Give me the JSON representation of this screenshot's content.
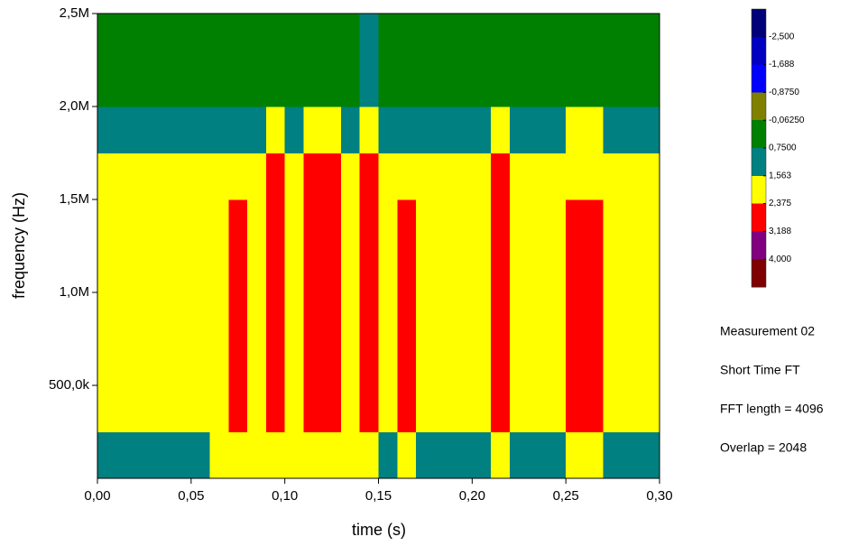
{
  "chart_data": {
    "type": "heatmap",
    "xlabel": "time (s)",
    "ylabel": "frequency (Hz)",
    "xlim": [
      0,
      0.3
    ],
    "ylim": [
      0,
      2500000
    ],
    "xticks": [
      {
        "value": 0,
        "label": "0,00"
      },
      {
        "value": 0.05,
        "label": "0,05"
      },
      {
        "value": 0.1,
        "label": "0,10"
      },
      {
        "value": 0.15,
        "label": "0,15"
      },
      {
        "value": 0.2,
        "label": "0,20"
      },
      {
        "value": 0.25,
        "label": "0,25"
      },
      {
        "value": 0.3,
        "label": "0,30"
      }
    ],
    "yticks": [
      {
        "value": 500000,
        "label": "500,0k"
      },
      {
        "value": 1000000,
        "label": "1,0M"
      },
      {
        "value": 1500000,
        "label": "1,5M"
      },
      {
        "value": 2000000,
        "label": "2,0M"
      },
      {
        "value": 2500000,
        "label": "2,5M"
      }
    ],
    "xbins": [
      0,
      0.01,
      0.02,
      0.03,
      0.04,
      0.05,
      0.06,
      0.07,
      0.08,
      0.09,
      0.1,
      0.11,
      0.12,
      0.13,
      0.14,
      0.15,
      0.16,
      0.17,
      0.18,
      0.19,
      0.2,
      0.21,
      0.22,
      0.23,
      0.24,
      0.25,
      0.26,
      0.27,
      0.28,
      0.29,
      0.3
    ],
    "ybins": [
      0,
      250000,
      500000,
      750000,
      1000000,
      1250000,
      1500000,
      1750000,
      2000000,
      2250000,
      2500000
    ],
    "z": [
      [
        1.3,
        1.3,
        1.3,
        1.3,
        1.3,
        1.5,
        1.6,
        1.6,
        1.6,
        2.0,
        1.6,
        2.0,
        2.0,
        1.6,
        2.0,
        1.5,
        1.6,
        1.5,
        1.5,
        1.5,
        1.5,
        2.0,
        1.5,
        1.3,
        1.3,
        1.7,
        1.7,
        1.3,
        1.3,
        1.3
      ],
      [
        1.7,
        1.7,
        1.7,
        1.7,
        1.8,
        2.0,
        2.0,
        2.4,
        2.1,
        2.7,
        2.2,
        2.9,
        2.6,
        2.2,
        2.9,
        2.0,
        2.4,
        2.0,
        2.0,
        2.0,
        2.0,
        2.8,
        2.0,
        1.9,
        1.9,
        2.6,
        2.6,
        1.9,
        1.8,
        1.7
      ],
      [
        1.7,
        1.7,
        1.7,
        1.7,
        1.8,
        2.0,
        2.0,
        2.4,
        2.1,
        2.7,
        2.2,
        2.9,
        2.6,
        2.2,
        2.9,
        2.0,
        2.4,
        2.0,
        2.0,
        2.0,
        2.0,
        2.8,
        2.0,
        1.9,
        1.9,
        2.6,
        2.6,
        1.9,
        1.8,
        1.7
      ],
      [
        1.7,
        1.7,
        1.7,
        1.7,
        1.8,
        2.0,
        2.0,
        2.4,
        2.1,
        2.7,
        2.2,
        2.9,
        2.6,
        2.2,
        2.9,
        2.0,
        2.4,
        2.0,
        2.0,
        2.0,
        2.0,
        2.8,
        2.0,
        1.9,
        1.9,
        2.6,
        2.6,
        1.9,
        1.8,
        1.7
      ],
      [
        1.7,
        1.7,
        1.7,
        1.7,
        1.8,
        2.0,
        2.0,
        2.4,
        2.1,
        2.7,
        2.2,
        2.9,
        2.6,
        2.2,
        2.9,
        2.0,
        2.4,
        2.0,
        2.0,
        2.0,
        2.0,
        2.8,
        2.0,
        1.9,
        1.9,
        2.6,
        2.6,
        1.9,
        1.8,
        1.7
      ],
      [
        1.7,
        1.7,
        1.7,
        1.7,
        1.8,
        2.0,
        2.0,
        2.4,
        2.1,
        2.7,
        2.2,
        2.9,
        2.6,
        2.2,
        2.9,
        2.0,
        2.4,
        2.0,
        2.0,
        2.0,
        2.0,
        2.8,
        2.0,
        1.9,
        1.9,
        2.6,
        2.6,
        1.9,
        1.8,
        1.7
      ],
      [
        1.6,
        1.6,
        1.6,
        1.6,
        1.7,
        1.8,
        1.8,
        2.0,
        1.9,
        2.4,
        2.0,
        2.5,
        2.4,
        2.0,
        2.6,
        1.8,
        2.0,
        1.8,
        1.8,
        1.8,
        1.8,
        2.4,
        1.8,
        1.7,
        1.7,
        2.0,
        2.0,
        1.7,
        1.6,
        1.6
      ],
      [
        1.2,
        1.2,
        1.2,
        1.2,
        1.2,
        1.2,
        1.2,
        1.2,
        1.2,
        1.7,
        1.2,
        1.7,
        1.6,
        1.2,
        1.8,
        1.2,
        1.2,
        1.2,
        1.2,
        1.2,
        1.2,
        1.6,
        1.2,
        1.2,
        1.2,
        1.6,
        1.6,
        1.2,
        1.2,
        1.2
      ],
      [
        0.5,
        0.5,
        0.5,
        0.5,
        0.5,
        0.5,
        0.5,
        0.5,
        0.5,
        0.5,
        0.5,
        0.7,
        0.5,
        0.5,
        1.0,
        0.5,
        0.5,
        0.5,
        0.5,
        0.5,
        0.5,
        0.7,
        0.5,
        0.5,
        0.5,
        0.5,
        0.5,
        0.5,
        0.5,
        0.5
      ],
      [
        0.5,
        0.5,
        0.5,
        0.5,
        0.5,
        0.5,
        0.5,
        0.5,
        0.5,
        0.5,
        0.5,
        0.5,
        0.5,
        0.5,
        1.0,
        0.5,
        0.5,
        0.5,
        0.5,
        0.5,
        0.5,
        0.5,
        0.5,
        0.5,
        0.5,
        0.5,
        0.5,
        0.5,
        0.5,
        0.5
      ]
    ],
    "colorbar": {
      "zlim": [
        -3.3125,
        4.8125
      ],
      "ticks": [
        {
          "value": -2.5,
          "label": "-2,500"
        },
        {
          "value": -1.6875,
          "label": "-1,688"
        },
        {
          "value": -0.875,
          "label": "-0,8750"
        },
        {
          "value": -0.0625,
          "label": "-0,06250"
        },
        {
          "value": 0.75,
          "label": "0,7500"
        },
        {
          "value": 1.5625,
          "label": "1,563"
        },
        {
          "value": 2.375,
          "label": "2,375"
        },
        {
          "value": 3.1875,
          "label": "3,188"
        },
        {
          "value": 4,
          "label": "4,000"
        }
      ],
      "colors": [
        "#00007a",
        "#0000c0",
        "#0000ff",
        "#808000",
        "#008000",
        "#008080",
        "#ffff00",
        "#ff0000",
        "#800080",
        "#800000"
      ]
    },
    "annotations": [
      "Measurement 02",
      "Short Time FT",
      "FFT length = 4096",
      "Overlap = 2048"
    ]
  }
}
